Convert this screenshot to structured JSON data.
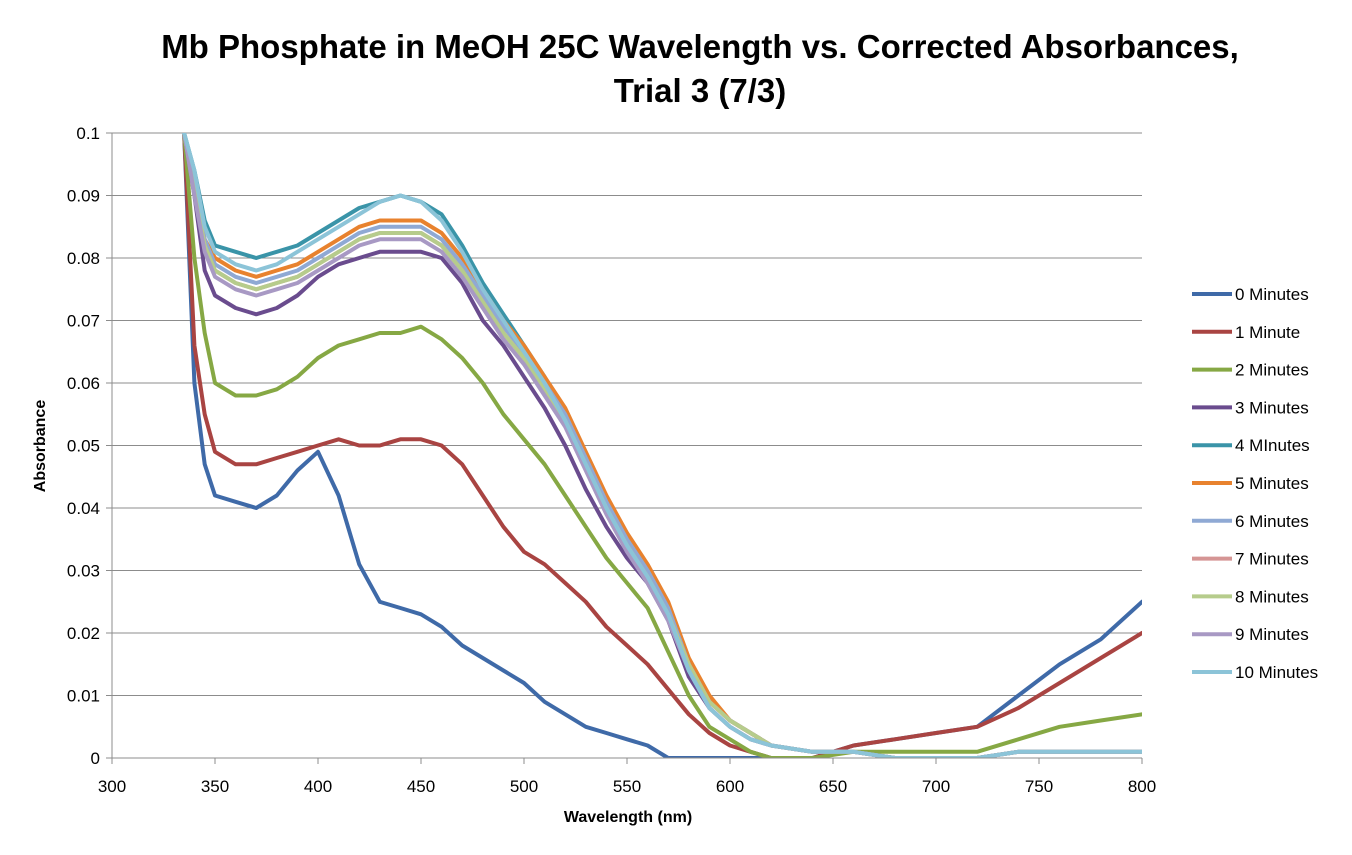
{
  "chart_data": {
    "type": "line",
    "title_line1": "Mb Phosphate in MeOH 25C Wavelength vs. Corrected Absorbances,",
    "title_line2": "Trial 3 (7/3)",
    "xlabel": "Wavelength (nm)",
    "ylabel": "Absorbance",
    "xlim": [
      300,
      800
    ],
    "ylim": [
      0,
      0.1
    ],
    "x_ticks": [
      "300",
      "350",
      "400",
      "450",
      "500",
      "550",
      "600",
      "650",
      "700",
      "750",
      "800"
    ],
    "y_ticks": [
      "0",
      "0.01",
      "0.02",
      "0.03",
      "0.04",
      "0.05",
      "0.06",
      "0.07",
      "0.08",
      "0.09",
      "0.1"
    ],
    "grid": "horizontal",
    "legend_position": "right",
    "x": [
      335,
      340,
      345,
      350,
      360,
      370,
      380,
      390,
      400,
      410,
      420,
      430,
      440,
      450,
      460,
      470,
      480,
      490,
      500,
      510,
      520,
      530,
      540,
      550,
      560,
      570,
      580,
      590,
      600,
      610,
      620,
      640,
      660,
      680,
      700,
      720,
      740,
      760,
      780,
      800
    ],
    "series": [
      {
        "name": "0 Minutes",
        "color": "#3F6AA8",
        "values": [
          0.1,
          0.06,
          0.047,
          0.042,
          0.041,
          0.04,
          0.042,
          0.046,
          0.049,
          0.042,
          0.031,
          0.025,
          0.024,
          0.023,
          0.021,
          0.018,
          0.016,
          0.014,
          0.012,
          0.009,
          0.007,
          0.005,
          0.004,
          0.003,
          0.002,
          0.0,
          0.0,
          0.0,
          0.0,
          0.0,
          0.0,
          0.0,
          0.002,
          0.003,
          0.004,
          0.005,
          0.01,
          0.015,
          0.019,
          0.025
        ]
      },
      {
        "name": "1 Minute",
        "color": "#A94442",
        "values": [
          0.1,
          0.066,
          0.055,
          0.049,
          0.047,
          0.047,
          0.048,
          0.049,
          0.05,
          0.051,
          0.05,
          0.05,
          0.051,
          0.051,
          0.05,
          0.047,
          0.042,
          0.037,
          0.033,
          0.031,
          0.028,
          0.025,
          0.021,
          0.018,
          0.015,
          0.011,
          0.007,
          0.004,
          0.002,
          0.001,
          0.0,
          0.0,
          0.002,
          0.003,
          0.004,
          0.005,
          0.008,
          0.012,
          0.016,
          0.02
        ]
      },
      {
        "name": "2 Minutes",
        "color": "#86A844",
        "values": [
          0.1,
          0.08,
          0.068,
          0.06,
          0.058,
          0.058,
          0.059,
          0.061,
          0.064,
          0.066,
          0.067,
          0.068,
          0.068,
          0.069,
          0.067,
          0.064,
          0.06,
          0.055,
          0.051,
          0.047,
          0.042,
          0.037,
          0.032,
          0.028,
          0.024,
          0.017,
          0.01,
          0.005,
          0.003,
          0.001,
          0.0,
          0.0,
          0.001,
          0.001,
          0.001,
          0.001,
          0.003,
          0.005,
          0.006,
          0.007
        ]
      },
      {
        "name": "3 Minutes",
        "color": "#6A4C8E",
        "values": [
          0.1,
          0.09,
          0.078,
          0.074,
          0.072,
          0.071,
          0.072,
          0.074,
          0.077,
          0.079,
          0.08,
          0.081,
          0.081,
          0.081,
          0.08,
          0.076,
          0.07,
          0.066,
          0.061,
          0.056,
          0.05,
          0.043,
          0.037,
          0.032,
          0.028,
          0.022,
          0.013,
          0.008,
          0.005,
          0.003,
          0.002,
          0.001,
          0.001,
          0.0,
          0.0,
          0.0,
          0.001,
          0.001,
          0.001,
          0.001
        ]
      },
      {
        "name": "4 MInutes",
        "color": "#3A94A8",
        "values": [
          0.1,
          0.094,
          0.086,
          0.082,
          0.081,
          0.08,
          0.081,
          0.082,
          0.084,
          0.086,
          0.088,
          0.089,
          0.09,
          0.089,
          0.087,
          0.082,
          0.076,
          0.071,
          0.066,
          0.061,
          0.055,
          0.048,
          0.041,
          0.035,
          0.03,
          0.024,
          0.015,
          0.009,
          0.006,
          0.004,
          0.002,
          0.001,
          0.001,
          0.0,
          0.0,
          0.0,
          0.001,
          0.001,
          0.001,
          0.001
        ]
      },
      {
        "name": "5 Minutes",
        "color": "#E8822E",
        "values": [
          0.1,
          0.092,
          0.083,
          0.08,
          0.078,
          0.077,
          0.078,
          0.079,
          0.081,
          0.083,
          0.085,
          0.086,
          0.086,
          0.086,
          0.084,
          0.08,
          0.075,
          0.07,
          0.066,
          0.061,
          0.056,
          0.049,
          0.042,
          0.036,
          0.031,
          0.025,
          0.016,
          0.01,
          0.006,
          0.004,
          0.002,
          0.001,
          0.001,
          0.0,
          0.0,
          0.0,
          0.001,
          0.001,
          0.001,
          0.001
        ]
      },
      {
        "name": "6 Minutes",
        "color": "#8FA9D4",
        "values": [
          0.1,
          0.092,
          0.083,
          0.079,
          0.077,
          0.076,
          0.077,
          0.078,
          0.08,
          0.082,
          0.084,
          0.085,
          0.085,
          0.085,
          0.083,
          0.079,
          0.074,
          0.069,
          0.065,
          0.06,
          0.055,
          0.048,
          0.041,
          0.035,
          0.03,
          0.024,
          0.015,
          0.009,
          0.006,
          0.004,
          0.002,
          0.001,
          0.001,
          0.0,
          0.0,
          0.0,
          0.001,
          0.001,
          0.001,
          0.001
        ]
      },
      {
        "name": "7 Minutes",
        "color": "#D59594",
        "values": [
          0.1,
          0.091,
          0.082,
          0.078,
          0.076,
          0.075,
          0.076,
          0.077,
          0.079,
          0.081,
          0.083,
          0.084,
          0.084,
          0.084,
          0.082,
          0.078,
          0.073,
          0.068,
          0.064,
          0.059,
          0.054,
          0.047,
          0.04,
          0.034,
          0.029,
          0.023,
          0.015,
          0.009,
          0.006,
          0.004,
          0.002,
          0.001,
          0.001,
          0.0,
          0.0,
          0.0,
          0.001,
          0.001,
          0.001,
          0.001
        ]
      },
      {
        "name": "8 Minutes",
        "color": "#B6CC8C",
        "values": [
          0.1,
          0.091,
          0.082,
          0.078,
          0.076,
          0.075,
          0.076,
          0.077,
          0.079,
          0.081,
          0.083,
          0.084,
          0.084,
          0.084,
          0.082,
          0.078,
          0.073,
          0.068,
          0.064,
          0.059,
          0.054,
          0.047,
          0.04,
          0.034,
          0.029,
          0.023,
          0.015,
          0.009,
          0.006,
          0.004,
          0.002,
          0.001,
          0.001,
          0.0,
          0.0,
          0.0,
          0.001,
          0.001,
          0.001,
          0.001
        ]
      },
      {
        "name": "9 Minutes",
        "color": "#A899C4",
        "values": [
          0.1,
          0.09,
          0.081,
          0.077,
          0.075,
          0.074,
          0.075,
          0.076,
          0.078,
          0.08,
          0.082,
          0.083,
          0.083,
          0.083,
          0.081,
          0.077,
          0.072,
          0.067,
          0.063,
          0.058,
          0.053,
          0.046,
          0.039,
          0.033,
          0.028,
          0.022,
          0.014,
          0.008,
          0.005,
          0.003,
          0.002,
          0.001,
          0.001,
          0.0,
          0.0,
          0.0,
          0.001,
          0.001,
          0.001,
          0.001
        ]
      },
      {
        "name": "10 Minutes",
        "color": "#8CC4D8",
        "values": [
          0.1,
          0.094,
          0.085,
          0.081,
          0.079,
          0.078,
          0.079,
          0.081,
          0.083,
          0.085,
          0.087,
          0.089,
          0.09,
          0.089,
          0.086,
          0.081,
          0.075,
          0.07,
          0.065,
          0.06,
          0.054,
          0.047,
          0.04,
          0.034,
          0.029,
          0.023,
          0.014,
          0.008,
          0.005,
          0.003,
          0.002,
          0.001,
          0.001,
          0.0,
          0.0,
          0.0,
          0.001,
          0.001,
          0.001,
          0.001
        ]
      }
    ]
  }
}
